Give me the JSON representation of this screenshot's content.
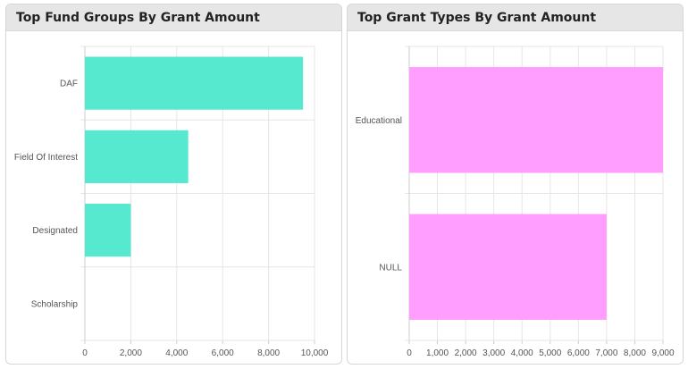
{
  "panels": {
    "left": {
      "title": "Top Fund Groups By Grant Amount"
    },
    "right": {
      "title": "Top Grant Types By Grant Amount"
    }
  },
  "chart_data": [
    {
      "type": "bar",
      "orientation": "horizontal",
      "title": "Top Fund Groups By Grant Amount",
      "categories": [
        "DAF",
        "Field Of Interest",
        "Designated",
        "Scholarship"
      ],
      "values": [
        9500,
        4500,
        2000,
        0
      ],
      "xlim": [
        0,
        10000
      ],
      "ticks": [
        0,
        2000,
        4000,
        6000,
        8000,
        10000
      ],
      "tick_labels": [
        "0",
        "2,000",
        "4,000",
        "6,000",
        "8,000",
        "10,000"
      ],
      "grid": true,
      "color": "#4de8cc"
    },
    {
      "type": "bar",
      "orientation": "horizontal",
      "title": "Top Grant Types By Grant Amount",
      "categories": [
        "Educational",
        "NULL"
      ],
      "values": [
        9000,
        7000
      ],
      "xlim": [
        0,
        9000
      ],
      "ticks": [
        0,
        1000,
        2000,
        3000,
        4000,
        5000,
        6000,
        7000,
        8000,
        9000
      ],
      "tick_labels": [
        "0",
        "1,000",
        "2,000",
        "3,000",
        "4,000",
        "5,000",
        "6,000",
        "7,000",
        "8,000",
        "9,000"
      ],
      "grid": true,
      "color": "#ff99ff"
    }
  ]
}
